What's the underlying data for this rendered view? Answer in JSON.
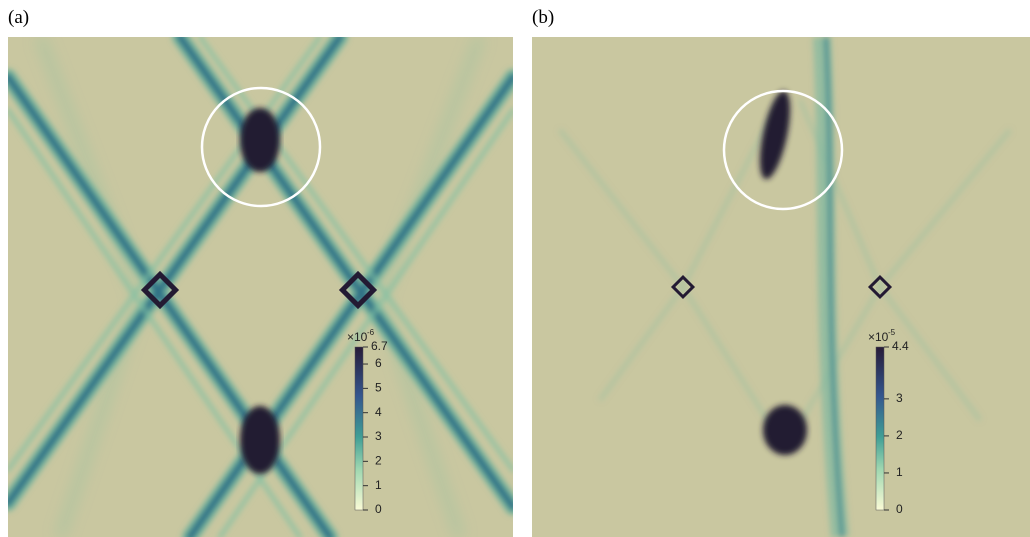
{
  "panels": [
    {
      "label": "(a)",
      "colorbar": {
        "exponent_base": "×10",
        "exponent": "-6",
        "max": 6.7,
        "ticks": [
          0,
          1,
          2,
          3,
          4,
          5,
          6
        ]
      }
    },
    {
      "label": "(b)",
      "colorbar": {
        "exponent_base": "×10",
        "exponent": "-5",
        "max": 4.4,
        "ticks": [
          0,
          1,
          2,
          3
        ]
      }
    }
  ]
}
